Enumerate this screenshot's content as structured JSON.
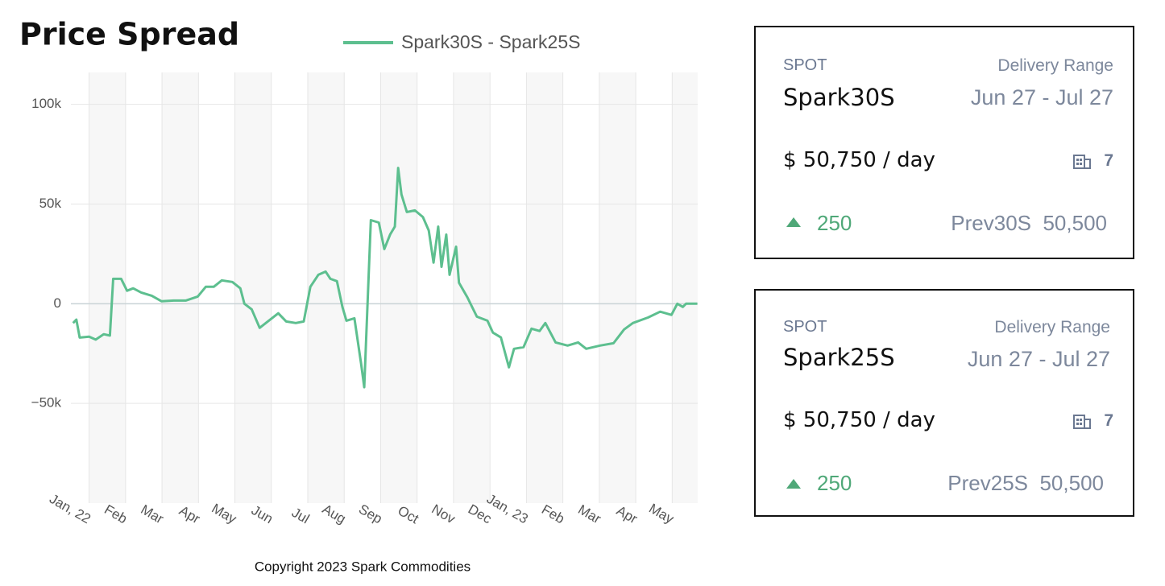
{
  "chart_data": {
    "type": "line",
    "title": "Price Spread",
    "x": [
      -0.44,
      -0.35,
      -0.26,
      0,
      0.18,
      0.4,
      0.57,
      0.66,
      0.88,
      1.04,
      1.21,
      1.43,
      1.72,
      1.99,
      2.32,
      2.65,
      2.98,
      3.2,
      3.42,
      3.64,
      3.93,
      4.15,
      4.26,
      4.46,
      4.68,
      4.9,
      5.19,
      5.41,
      5.67,
      5.89,
      6.07,
      6.29,
      6.49,
      6.62,
      6.8,
      6.95,
      7.06,
      7.28,
      7.46,
      7.55,
      7.64,
      7.73,
      7.95,
      8.1,
      8.26,
      8.39,
      8.48,
      8.57,
      8.72,
      8.94,
      9.16,
      9.32,
      9.45,
      9.58,
      9.67,
      9.8,
      9.89,
      10.07,
      10.15,
      10.38,
      10.64,
      10.93,
      11.08,
      11.3,
      11.52,
      11.66,
      11.92,
      12.14,
      12.36,
      12.52,
      12.8,
      13.13,
      13.42,
      13.64,
      14.02,
      14.39,
      14.68,
      14.92,
      15.34,
      15.67,
      15.98,
      16.14,
      16.29,
      16.38,
      16.69
    ],
    "series": [
      {
        "name": "Spark30S - Spark25S",
        "color": "#5dbf8f",
        "values": [
          -9700,
          -8000,
          -17000,
          -16500,
          -18000,
          -15300,
          -16000,
          12500,
          12500,
          6500,
          7700,
          5600,
          4000,
          1200,
          1600,
          1600,
          3600,
          8500,
          8500,
          11700,
          10900,
          7700,
          0,
          -2800,
          -12100,
          -8900,
          -4800,
          -8900,
          -9700,
          -8900,
          8500,
          14500,
          16100,
          12500,
          11300,
          -1600,
          -8500,
          -7300,
          -29800,
          -41900,
          0,
          41900,
          40700,
          27400,
          34700,
          38700,
          68100,
          54800,
          46000,
          46800,
          43500,
          36700,
          20600,
          38700,
          18500,
          34700,
          14500,
          28600,
          10500,
          3200,
          -6500,
          -8500,
          -14500,
          -16900,
          -31900,
          -22600,
          -21800,
          -12500,
          -13700,
          -9700,
          -19400,
          -21000,
          -19400,
          -22600,
          -21000,
          -19800,
          -12900,
          -9700,
          -6900,
          -4000,
          -5600,
          0,
          -1600,
          0,
          0
        ]
      }
    ],
    "xlim": [
      -0.5,
      16.7
    ],
    "xticks": [
      {
        "value": 0,
        "label": "Jan, 22"
      },
      {
        "value": 1,
        "label": "Feb"
      },
      {
        "value": 2,
        "label": "Mar"
      },
      {
        "value": 3,
        "label": "Apr"
      },
      {
        "value": 4,
        "label": "May"
      },
      {
        "value": 5,
        "label": "Jun"
      },
      {
        "value": 6,
        "label": "Jul"
      },
      {
        "value": 7,
        "label": "Aug"
      },
      {
        "value": 8,
        "label": "Sep"
      },
      {
        "value": 9,
        "label": "Oct"
      },
      {
        "value": 10,
        "label": "Nov"
      },
      {
        "value": 11,
        "label": "Dec"
      },
      {
        "value": 12,
        "label": "Jan, 23"
      },
      {
        "value": 13,
        "label": "Feb"
      },
      {
        "value": 14,
        "label": "Mar"
      },
      {
        "value": 15,
        "label": "Apr"
      },
      {
        "value": 16,
        "label": "May"
      }
    ],
    "ylim": [
      -100000,
      116000
    ],
    "yticks": [
      {
        "value": -50000,
        "label": "−50k"
      },
      0,
      {
        "value": 50000,
        "label": "50k"
      },
      {
        "value": 100000,
        "label": "100k"
      }
    ],
    "grid": true,
    "legend": "top"
  },
  "footer": "Copyright 2023 Spark Commodities",
  "cards": [
    {
      "spot": "SPOT",
      "name": "Spark30S",
      "range_label": "Delivery Range",
      "range": "Jun 27 - Jul 27",
      "price": "$ 50,750 / day",
      "count": "7",
      "change": "250",
      "prev_label": "Prev30S",
      "prev": "50,500"
    },
    {
      "spot": "SPOT",
      "name": "Spark25S",
      "range_label": "Delivery Range",
      "range": "Jun 27 - Jul 27",
      "price": "$ 50,750 / day",
      "count": "7",
      "change": "250",
      "prev_label": "Prev25S",
      "prev": "50,500"
    }
  ]
}
